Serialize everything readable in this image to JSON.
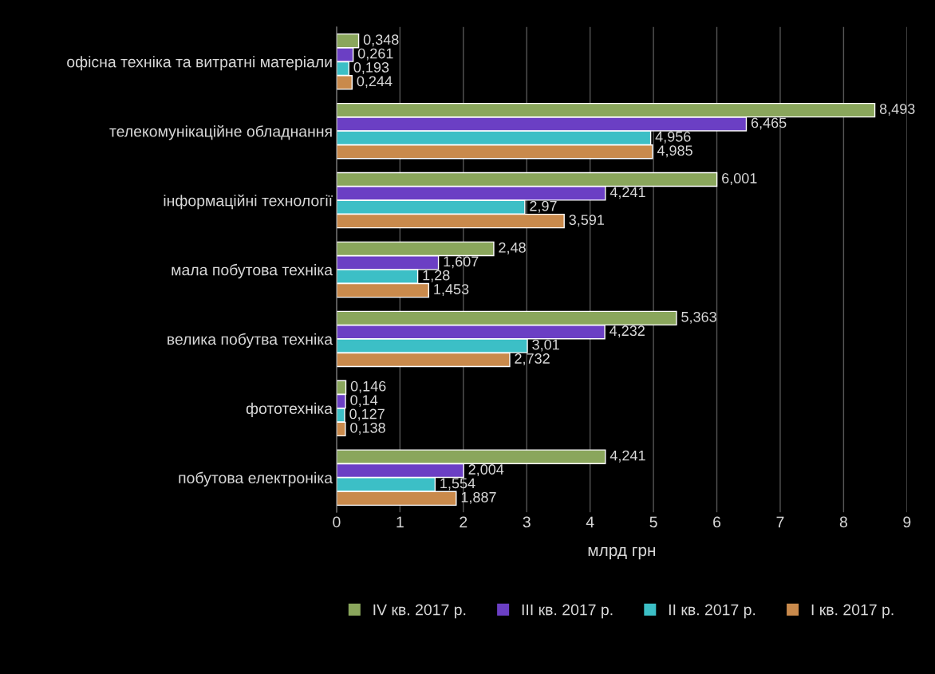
{
  "chart_data": {
    "type": "bar",
    "orientation": "horizontal",
    "xlabel": "млрд грн",
    "categories": [
      "офісна техніка та витратні матеріали",
      "телекомунікаційне обладнання",
      "інформаційні технології",
      "мала побутова техніка",
      "велика побутва техніка",
      "фототехніка",
      "побутова електроніка"
    ],
    "series": [
      {
        "name": "IV кв. 2017 р.",
        "color": "#8aa65c",
        "values": [
          0.348,
          8.493,
          6.001,
          2.48,
          5.363,
          0.146,
          4.241
        ],
        "value_labels": [
          "0,348",
          "8,493",
          "6,001",
          "2,48",
          "5,363",
          "0,146",
          "4,241"
        ]
      },
      {
        "name": "III кв. 2017 р.",
        "color": "#6b3fc4",
        "values": [
          0.261,
          6.465,
          4.241,
          1.607,
          4.232,
          0.14,
          2.004
        ],
        "value_labels": [
          "0,261",
          "6,465",
          "4,241",
          "1,607",
          "4,232",
          "0,14",
          "2,004"
        ]
      },
      {
        "name": "II кв. 2017 р.",
        "color": "#3cbfc6",
        "values": [
          0.193,
          4.956,
          2.97,
          1.28,
          3.01,
          0.127,
          1.554
        ],
        "value_labels": [
          "0,193",
          "4,956",
          "2,97",
          "1,28",
          "3,01",
          "0,127",
          "1,554"
        ]
      },
      {
        "name": "I кв. 2017 р.",
        "color": "#c98a4c",
        "values": [
          0.244,
          4.985,
          3.591,
          1.453,
          2.732,
          0.138,
          1.887
        ],
        "value_labels": [
          "0,244",
          "4,985",
          "3,591",
          "1,453",
          "2,732",
          "0,138",
          "1,887"
        ]
      }
    ],
    "xlim": [
      0,
      9
    ],
    "xticks": [
      0,
      1,
      2,
      3,
      4,
      5,
      6,
      7,
      8,
      9
    ],
    "grid": "x",
    "legend": "bottom"
  }
}
